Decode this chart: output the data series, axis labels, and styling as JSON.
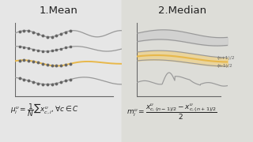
{
  "bg_color": "#e6e6e6",
  "bg_color_right": "#ddddd8",
  "title_left": "1.Mean",
  "title_right": "2.Median",
  "label_n1": "(n+1)/2",
  "label_n2": "(n-1)/2",
  "gray_line": "#999999",
  "gray_dark": "#666666",
  "yellow": "#e8b84b",
  "yellow_fill": "#f0d080",
  "light_fill": "#cccccc"
}
